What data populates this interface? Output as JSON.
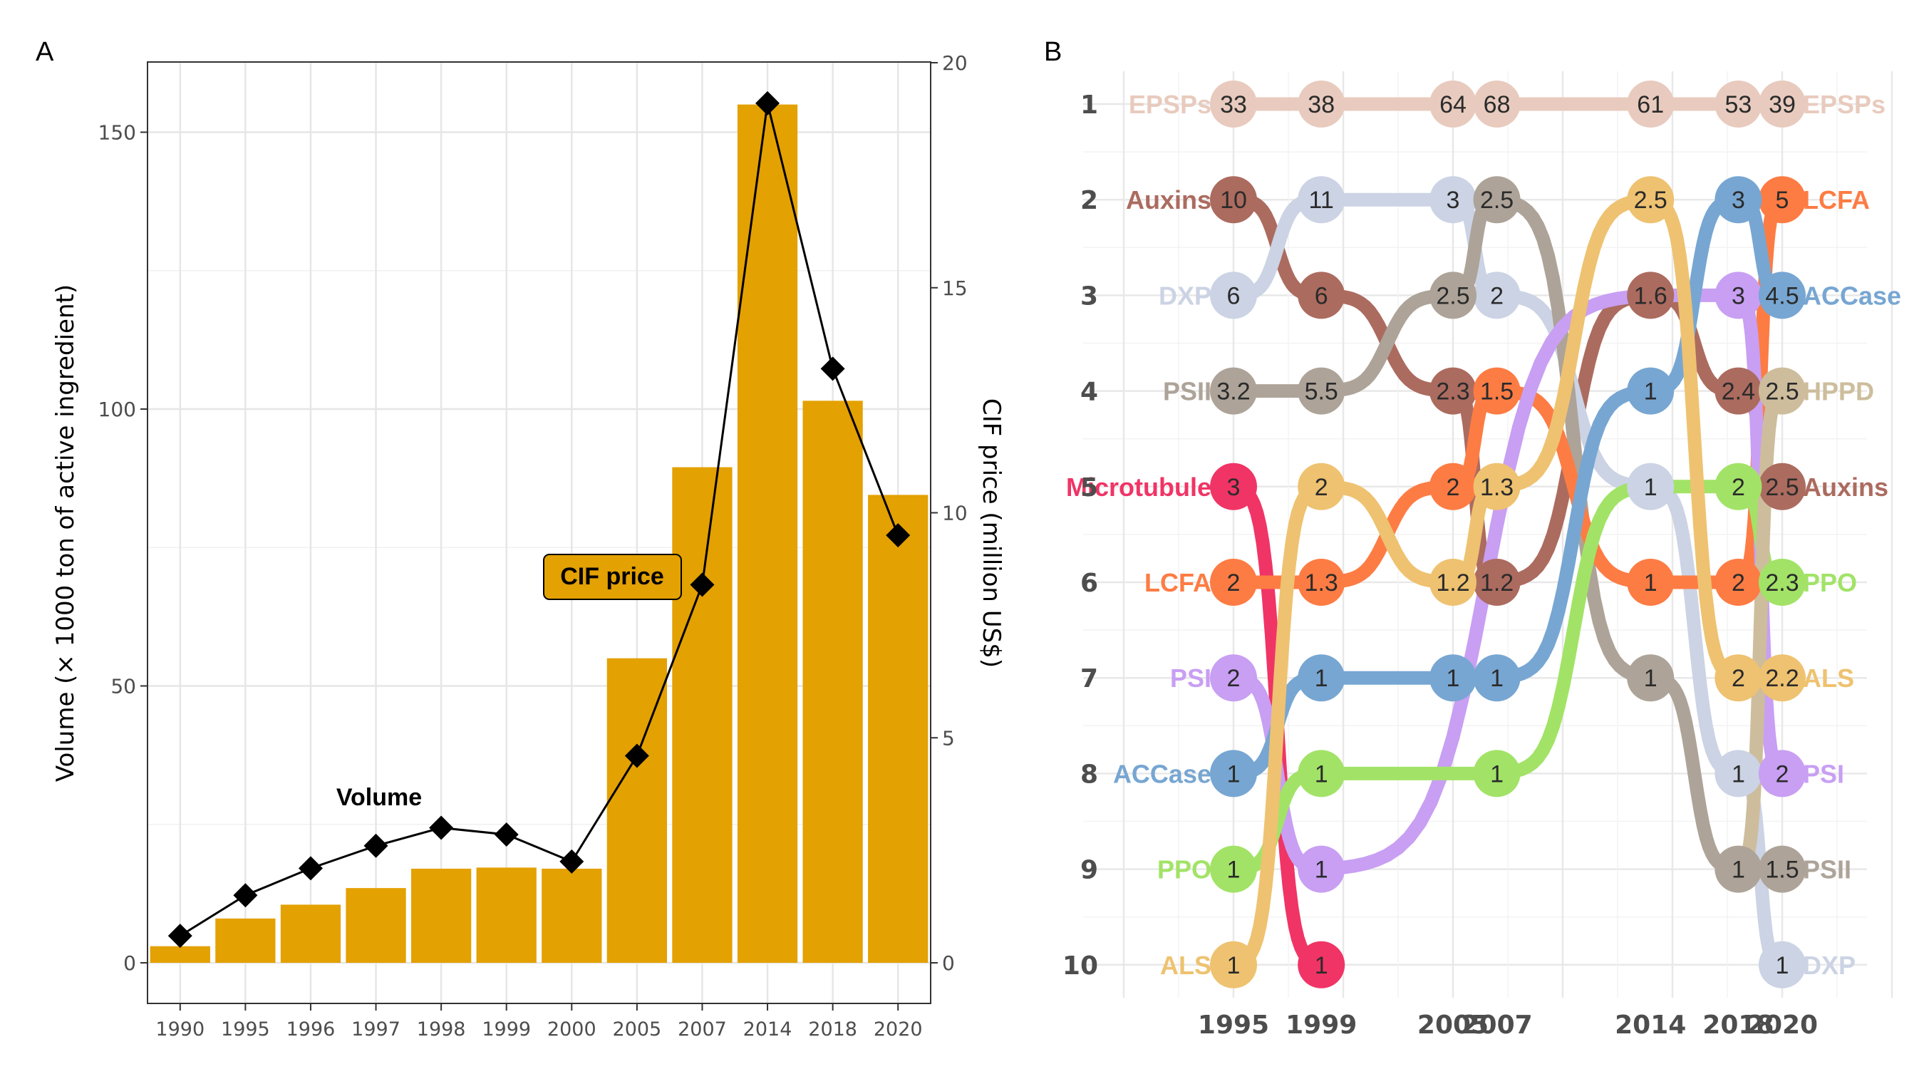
{
  "panelA": {
    "letter": "A",
    "y_left_label": "Volume (× 1000 ton of active ingredient)",
    "y_right_label": "CIF price (million US$)",
    "y_left_ticks": [
      "0",
      "50",
      "100",
      "150"
    ],
    "y_right_ticks": [
      "0",
      "5",
      "10",
      "15",
      "20"
    ],
    "annotation_price": "CIF price",
    "annotation_volume": "Volume",
    "colors": {
      "bar": "#E3A102",
      "line": "#000000",
      "grid": "#E6E6E6"
    }
  },
  "panelB": {
    "letter": "B",
    "rank_labels": [
      "1",
      "2",
      "3",
      "4",
      "5",
      "6",
      "7",
      "8",
      "9",
      "10"
    ],
    "year_labels": [
      "1995",
      "1999",
      "2005",
      "2007",
      "2014",
      "2018",
      "2020"
    ],
    "left_labels": [
      "EPSPs",
      "Auxins",
      "DXP",
      "PSII",
      "Microtubule",
      "LCFA",
      "PSI",
      "ACCase",
      "PPO",
      "ALS"
    ],
    "right_labels": [
      "EPSPs",
      "LCFA",
      "ACCase",
      "HPPD",
      "Auxins",
      "PPO",
      "ALS",
      "PSI",
      "PSII",
      "DXP"
    ]
  },
  "chart_data": [
    {
      "type": "bar",
      "title": "",
      "xlabel": "",
      "ylabel": "Volume (× 1000 ton of active ingredient)",
      "y2label": "CIF price (million US$)",
      "categories": [
        "1990",
        "1995",
        "1996",
        "1997",
        "1998",
        "1999",
        "2000",
        "2005",
        "2007",
        "2014",
        "2018",
        "2020"
      ],
      "ylim": [
        0,
        162
      ],
      "y2lim": [
        0,
        20
      ],
      "series": [
        {
          "name": "Volume",
          "kind": "bar",
          "axis": "left",
          "values": [
            3,
            8,
            10.5,
            13.5,
            17,
            17.2,
            17,
            55,
            89.5,
            155,
            101.5,
            84.5
          ]
        },
        {
          "name": "CIF price",
          "kind": "line",
          "axis": "right",
          "values": [
            0.6,
            1.5,
            2.1,
            2.6,
            3.0,
            2.85,
            2.25,
            4.6,
            8.4,
            19.1,
            13.2,
            9.5
          ]
        }
      ],
      "grid": true
    },
    {
      "type": "line",
      "subtype": "bump",
      "title": "",
      "xlabel": "",
      "ylabel": "",
      "x": [
        1995,
        1999,
        2005,
        2007,
        2014,
        2018,
        2020
      ],
      "ylim": [
        10,
        1
      ],
      "series": [
        {
          "name": "EPSPs",
          "color": "#E8CBBE",
          "points": [
            {
              "x": 1995,
              "rank": 1,
              "value": "33"
            },
            {
              "x": 1999,
              "rank": 1,
              "value": "38"
            },
            {
              "x": 2005,
              "rank": 1,
              "value": "64"
            },
            {
              "x": 2007,
              "rank": 1,
              "value": "68"
            },
            {
              "x": 2014,
              "rank": 1,
              "value": "61"
            },
            {
              "x": 2018,
              "rank": 1,
              "value": "53"
            },
            {
              "x": 2020,
              "rank": 1,
              "value": "39"
            }
          ]
        },
        {
          "name": "Auxins",
          "color": "#AC6B5F",
          "points": [
            {
              "x": 1995,
              "rank": 2,
              "value": "10"
            },
            {
              "x": 1999,
              "rank": 3,
              "value": "6"
            },
            {
              "x": 2005,
              "rank": 4,
              "value": "2.3"
            },
            {
              "x": 2007,
              "rank": 6,
              "value": "1.2"
            },
            {
              "x": 2014,
              "rank": 3,
              "value": "1.6"
            },
            {
              "x": 2018,
              "rank": 4,
              "value": "2.4"
            },
            {
              "x": 2020,
              "rank": 5,
              "value": "2.5"
            }
          ]
        },
        {
          "name": "DXP",
          "color": "#CBD3E4",
          "points": [
            {
              "x": 1995,
              "rank": 3,
              "value": "6"
            },
            {
              "x": 1999,
              "rank": 2,
              "value": "11"
            },
            {
              "x": 2005,
              "rank": 2,
              "value": "3"
            },
            {
              "x": 2007,
              "rank": 3,
              "value": "2"
            },
            {
              "x": 2014,
              "rank": 5,
              "value": "1"
            },
            {
              "x": 2018,
              "rank": 8,
              "value": "1"
            },
            {
              "x": 2020,
              "rank": 10,
              "value": "1"
            }
          ]
        },
        {
          "name": "PSII",
          "color": "#ADA398",
          "points": [
            {
              "x": 1995,
              "rank": 4,
              "value": "3.2"
            },
            {
              "x": 1999,
              "rank": 4,
              "value": "5.5"
            },
            {
              "x": 2005,
              "rank": 3,
              "value": "2.5"
            },
            {
              "x": 2007,
              "rank": 2,
              "value": "2.5"
            },
            {
              "x": 2014,
              "rank": 7,
              "value": "1"
            },
            {
              "x": 2018,
              "rank": 9,
              "value": "1"
            },
            {
              "x": 2020,
              "rank": 9,
              "value": "1.5"
            }
          ]
        },
        {
          "name": "Microtubule",
          "color": "#F03466",
          "points": [
            {
              "x": 1995,
              "rank": 5,
              "value": "3"
            },
            {
              "x": 1999,
              "rank": 10,
              "value": "1"
            }
          ]
        },
        {
          "name": "LCFA",
          "color": "#FD7C44",
          "points": [
            {
              "x": 1995,
              "rank": 6,
              "value": "2"
            },
            {
              "x": 1999,
              "rank": 6,
              "value": "1.3"
            },
            {
              "x": 2005,
              "rank": 5,
              "value": "2"
            },
            {
              "x": 2007,
              "rank": 4,
              "value": "1.5"
            },
            {
              "x": 2014,
              "rank": 6,
              "value": "1"
            },
            {
              "x": 2018,
              "rank": 6,
              "value": "2"
            },
            {
              "x": 2020,
              "rank": 2,
              "value": "5"
            }
          ]
        },
        {
          "name": "PSI",
          "color": "#C89FF3",
          "points": [
            {
              "x": 1995,
              "rank": 7,
              "value": "2"
            },
            {
              "x": 1999,
              "rank": 9,
              "value": "1"
            },
            {
              "x": 2014,
              "rank": 3,
              "value": ""
            },
            {
              "x": 2018,
              "rank": 3,
              "value": "3"
            },
            {
              "x": 2020,
              "rank": 8,
              "value": "2"
            }
          ]
        },
        {
          "name": "ACCase",
          "color": "#77A6D2",
          "points": [
            {
              "x": 1995,
              "rank": 8,
              "value": "1"
            },
            {
              "x": 1999,
              "rank": 7,
              "value": "1"
            },
            {
              "x": 2005,
              "rank": 7,
              "value": "1"
            },
            {
              "x": 2007,
              "rank": 7,
              "value": "1"
            },
            {
              "x": 2014,
              "rank": 4,
              "value": "1"
            },
            {
              "x": 2018,
              "rank": 2,
              "value": "3"
            },
            {
              "x": 2020,
              "rank": 3,
              "value": "4.5"
            }
          ]
        },
        {
          "name": "PPO",
          "color": "#A2E367",
          "points": [
            {
              "x": 1995,
              "rank": 9,
              "value": "1"
            },
            {
              "x": 1999,
              "rank": 8,
              "value": "1"
            },
            {
              "x": 2007,
              "rank": 8,
              "value": "1"
            },
            {
              "x": 2014,
              "rank": 5,
              "value": ""
            },
            {
              "x": 2018,
              "rank": 5,
              "value": "2"
            },
            {
              "x": 2020,
              "rank": 6,
              "value": "2.3"
            }
          ]
        },
        {
          "name": "ALS",
          "color": "#EEC270",
          "points": [
            {
              "x": 1995,
              "rank": 10,
              "value": "1"
            },
            {
              "x": 1999,
              "rank": 5,
              "value": "2"
            },
            {
              "x": 2005,
              "rank": 6,
              "value": "1.2"
            },
            {
              "x": 2007,
              "rank": 5,
              "value": "1.3"
            },
            {
              "x": 2014,
              "rank": 2,
              "value": "2.5"
            },
            {
              "x": 2018,
              "rank": 7,
              "value": "2"
            },
            {
              "x": 2020,
              "rank": 7,
              "value": "2.2"
            }
          ]
        },
        {
          "name": "HPPD",
          "color": "#CDBD9C",
          "points": [
            {
              "x": 2018,
              "rank": 9,
              "value": ""
            },
            {
              "x": 2020,
              "rank": 4,
              "value": "2.5"
            }
          ]
        }
      ]
    }
  ]
}
